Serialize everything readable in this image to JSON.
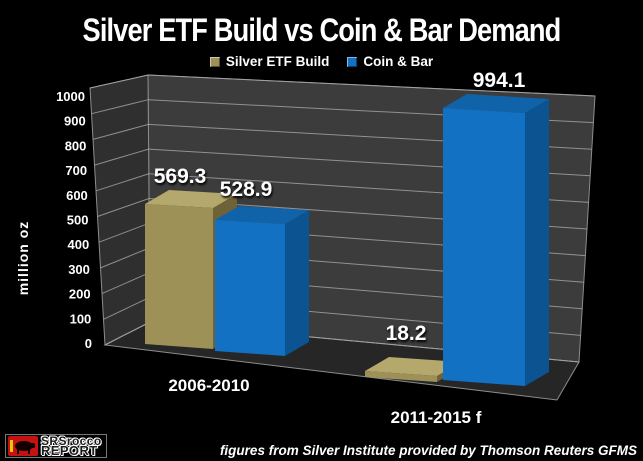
{
  "logo": {
    "line1": "SRSrocco",
    "line2": "REPORT"
  },
  "chart_data": {
    "type": "bar",
    "style": "3d",
    "title": "Silver ETF Build vs Coin & Bar Demand",
    "categories": [
      "2006-2010",
      "2011-2015 f"
    ],
    "series": [
      {
        "name": "Silver ETF Build",
        "values": [
          569.3,
          18.2
        ],
        "colors": {
          "front": "#9E9157",
          "top": "#B5A86C",
          "side": "#6E6238"
        }
      },
      {
        "name": "Coin & Bar",
        "values": [
          528.9,
          994.1
        ],
        "colors": {
          "front": "#1271C2",
          "top": "#1063A8",
          "side": "#0B5391"
        }
      }
    ],
    "ylabel": "million oz",
    "ylim": [
      0,
      1000
    ],
    "ytick_step": 100,
    "grid": true,
    "legend_position": "top",
    "background": "#000000",
    "wall_color": "#3C3C3C",
    "footnote": "figures from Silver Institute provided by Thomson Reuters GFMS"
  }
}
